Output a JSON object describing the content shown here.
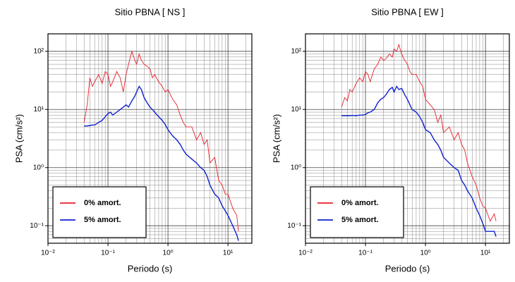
{
  "chart_data": [
    {
      "type": "line",
      "title": "Sitio PBNA [ NS ]",
      "xlabel": "Periodo (s)",
      "ylabel": "PSA (cm/s²)",
      "xscale": "log",
      "yscale": "log",
      "grid": true,
      "legend": "lower left",
      "xlim": [
        0.01,
        25
      ],
      "ylim": [
        0.05,
        200
      ],
      "xticks": [
        {
          "value": 0.01,
          "label": "10⁻²"
        },
        {
          "value": 0.1,
          "label": "10⁻¹"
        },
        {
          "value": 1,
          "label": "10⁰"
        },
        {
          "value": 10,
          "label": "10¹"
        }
      ],
      "yticks": [
        {
          "value": 0.1,
          "label": "10⁻¹"
        },
        {
          "value": 1,
          "label": "10⁰"
        },
        {
          "value": 10,
          "label": "10¹"
        },
        {
          "value": 100,
          "label": "10²"
        }
      ],
      "x": [
        0.04,
        0.045,
        0.05,
        0.055,
        0.06,
        0.07,
        0.08,
        0.09,
        0.1,
        0.11,
        0.12,
        0.14,
        0.16,
        0.18,
        0.2,
        0.22,
        0.25,
        0.28,
        0.3,
        0.33,
        0.36,
        0.4,
        0.45,
        0.5,
        0.55,
        0.6,
        0.7,
        0.8,
        0.9,
        1,
        1.2,
        1.4,
        1.6,
        1.8,
        2,
        2.5,
        3,
        3.5,
        4,
        4.5,
        5,
        6,
        7,
        8,
        9,
        10,
        12,
        14,
        15
      ],
      "series": [
        {
          "name": "0% amort.",
          "color": "#e8202a",
          "values": [
            6,
            12,
            35,
            25,
            30,
            40,
            28,
            45,
            40,
            25,
            30,
            45,
            35,
            20,
            40,
            60,
            100,
            70,
            60,
            90,
            70,
            60,
            55,
            50,
            35,
            40,
            30,
            25,
            20,
            22,
            15,
            12,
            8,
            6,
            5,
            5,
            3,
            4,
            2.5,
            3,
            1.2,
            1.5,
            0.6,
            0.5,
            0.35,
            0.35,
            0.2,
            0.15,
            0.08
          ]
        },
        {
          "name": "5% amort.",
          "color": "#1020d0",
          "values": [
            5.2,
            5.2,
            5.3,
            5.4,
            5.4,
            6,
            6.5,
            7.5,
            8.5,
            9,
            8,
            9,
            10,
            11,
            12,
            11,
            14,
            17,
            20,
            25,
            22,
            16,
            13,
            11,
            10,
            9,
            7.5,
            6.5,
            5.5,
            4.5,
            3.5,
            3,
            2.5,
            2,
            1.7,
            1.4,
            1.2,
            1,
            0.9,
            0.7,
            0.5,
            0.35,
            0.3,
            0.22,
            0.18,
            0.15,
            0.1,
            0.07,
            0.055
          ]
        }
      ]
    },
    {
      "type": "line",
      "title": "Sitio PBNA [ EW ]",
      "xlabel": "Periodo (s)",
      "ylabel": "PSA (cm/s²)",
      "xscale": "log",
      "yscale": "log",
      "grid": true,
      "legend": "lower left",
      "xlim": [
        0.01,
        25
      ],
      "ylim": [
        0.05,
        200
      ],
      "xticks": [
        {
          "value": 0.01,
          "label": "10⁻²"
        },
        {
          "value": 0.1,
          "label": "10⁻¹"
        },
        {
          "value": 1,
          "label": "10⁰"
        },
        {
          "value": 10,
          "label": "10¹"
        }
      ],
      "yticks": [
        {
          "value": 0.1,
          "label": "10⁻¹"
        },
        {
          "value": 1,
          "label": "10⁰"
        },
        {
          "value": 10,
          "label": "10¹"
        },
        {
          "value": 100,
          "label": "10²"
        }
      ],
      "x": [
        0.04,
        0.045,
        0.05,
        0.055,
        0.06,
        0.07,
        0.08,
        0.09,
        0.1,
        0.11,
        0.12,
        0.14,
        0.16,
        0.18,
        0.2,
        0.22,
        0.25,
        0.28,
        0.3,
        0.33,
        0.36,
        0.4,
        0.45,
        0.5,
        0.55,
        0.6,
        0.7,
        0.8,
        0.9,
        1,
        1.2,
        1.4,
        1.6,
        1.8,
        2,
        2.5,
        3,
        3.5,
        4,
        4.5,
        5,
        6,
        7,
        8,
        9,
        10,
        12,
        14,
        15
      ],
      "series": [
        {
          "name": "0% amort.",
          "color": "#e8202a",
          "values": [
            11,
            16,
            14,
            22,
            20,
            28,
            35,
            30,
            45,
            40,
            30,
            50,
            60,
            80,
            70,
            75,
            90,
            80,
            110,
            100,
            130,
            90,
            70,
            60,
            45,
            40,
            40,
            30,
            25,
            15,
            12,
            10,
            6,
            8,
            4,
            5,
            3,
            4,
            2.5,
            2,
            1.2,
            0.7,
            0.5,
            0.3,
            0.22,
            0.2,
            0.12,
            0.16,
            0.12
          ]
        },
        {
          "name": "5% amort.",
          "color": "#1020d0",
          "values": [
            7.8,
            7.8,
            7.8,
            7.8,
            7.9,
            7.8,
            8,
            8,
            8.2,
            8.8,
            9,
            10,
            13,
            15,
            16,
            18,
            22,
            24,
            20,
            25,
            22,
            23,
            18,
            15,
            12,
            10,
            9,
            7.5,
            6,
            4.5,
            4,
            3,
            2.5,
            2,
            1.5,
            1.2,
            1,
            0.9,
            0.6,
            0.5,
            0.4,
            0.3,
            0.2,
            0.15,
            0.11,
            0.08,
            0.08,
            0.08,
            0.065
          ]
        }
      ]
    }
  ]
}
